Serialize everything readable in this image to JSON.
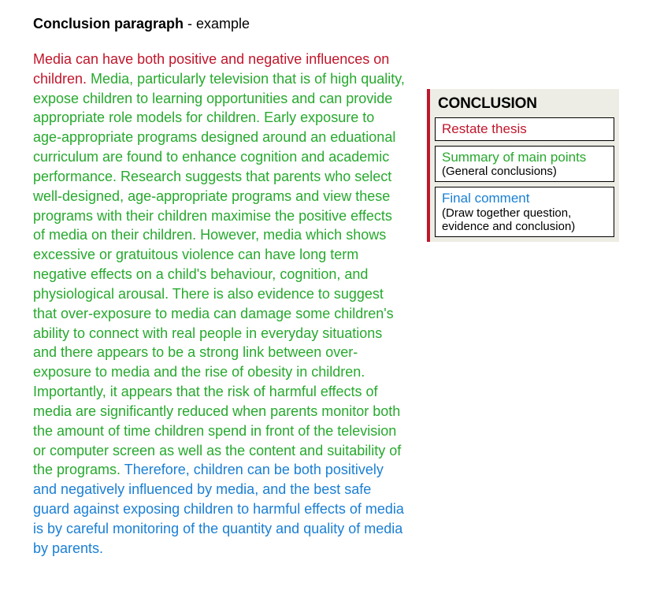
{
  "title": {
    "bold": "Conclusion paragraph",
    "rest": " - example"
  },
  "paragraph": {
    "thesis": "Media can have both positive and negative influences on children.",
    "summary": "  Media, particularly television that is of high quality, expose children to learning opportunities and can provide appropriate role models for children.  Early exposure to age-appropriate programs designed around an eduational curriculum are found to enhance cognition and academic performance.  Research suggests that parents who select well-designed, age-appropriate programs and view these programs with their children maximise the positive effects of media on their children.  However, media which shows excessive or gratuitous violence can have long term negative effects on a child's behaviour, cognition, and physiological arousal.  There is also evidence to suggest that over-exposure to media can damage some children's ability to connect with real people in everyday situations and there appears to be a strong link between over-exposure to media and the rise of obesity in children.  Importantly, it appears that the risk of harmful effects of media are significantly reduced when parents monitor both the amount of time children spend in front of the television or computer screen as well as the content and suitability of the programs.",
    "final": "  Therefore, children can be both positively and negatively influenced by media, and the best safe guard against exposing children to harmful effects of media is by careful monitoring of the quantity and quality of media by parents."
  },
  "sidebar": {
    "heading": "CONCLUSION",
    "box1": {
      "main": "Restate thesis"
    },
    "box2": {
      "main": "Summary of main points",
      "sub": "(General conclusions)"
    },
    "box3": {
      "main": "Final comment",
      "sub": "(Draw together question, evidence and conclusion)"
    }
  },
  "colors": {
    "thesis": "#c1162b",
    "summary": "#27a92e",
    "final": "#1a7fd4",
    "sidebar_bg": "#edede5",
    "sidebar_border": "#c1162b",
    "box_border": "#000000",
    "page_bg": "#ffffff"
  }
}
